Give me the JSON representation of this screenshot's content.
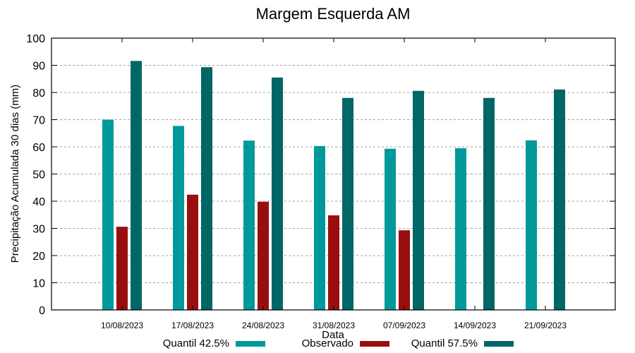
{
  "chart_data": {
    "type": "bar",
    "title": "Margem Esquerda AM",
    "xlabel": "Data",
    "ylabel": "Precipitação Acumulada 30 dias (mm)",
    "ylim": [
      0,
      100
    ],
    "yticks": [
      0,
      10,
      20,
      30,
      40,
      50,
      60,
      70,
      80,
      90,
      100
    ],
    "grid": true,
    "legend_position": "bottom",
    "categories": [
      "10/08/2023",
      "17/08/2023",
      "24/08/2023",
      "31/08/2023",
      "07/09/2023",
      "14/09/2023",
      "21/09/2023"
    ],
    "series": [
      {
        "name": "Quantil 42.5%",
        "color": "#009999",
        "values": [
          70.0,
          67.7,
          62.3,
          60.3,
          59.3,
          59.5,
          62.4
        ]
      },
      {
        "name": "Observado",
        "color": "#990f0f",
        "values": [
          30.6,
          42.4,
          39.8,
          34.8,
          29.3,
          null,
          null
        ]
      },
      {
        "name": "Quantil 57.5%",
        "color": "#006666",
        "values": [
          91.6,
          89.3,
          85.5,
          78.0,
          80.6,
          78.0,
          81.1
        ]
      }
    ]
  }
}
